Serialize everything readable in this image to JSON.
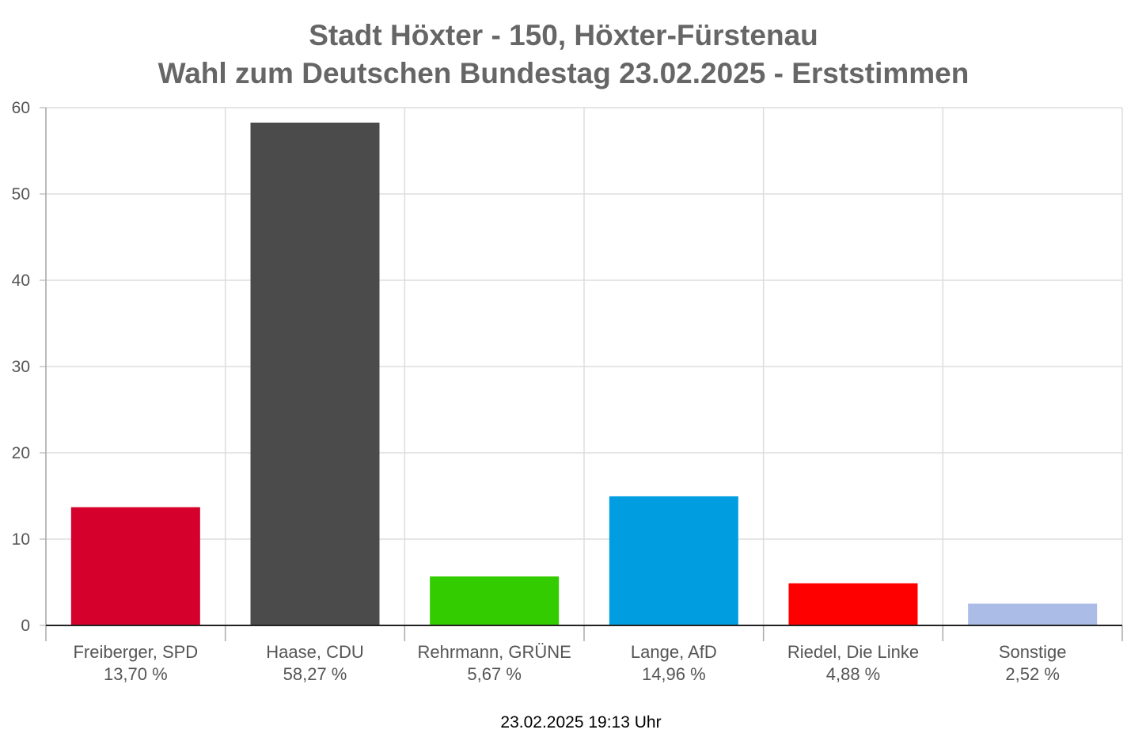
{
  "chart_data": {
    "type": "bar",
    "title": "Stadt Höxter - 150, Höxter-Fürstenau",
    "subtitle": "Wahl zum Deutschen Bundestag 23.02.2025  - Erststimmen",
    "categories": [
      "Freiberger, SPD",
      "Haase, CDU",
      "Rehrmann, GRÜNE",
      "Lange, AfD",
      "Riedel, Die Linke",
      "Sonstige"
    ],
    "values": [
      13.7,
      58.27,
      5.67,
      14.96,
      4.88,
      2.52
    ],
    "value_labels": [
      "13,70 %",
      "58,27 %",
      "5,67 %",
      "14,96 %",
      "4,88 %",
      "2,52 %"
    ],
    "colors": [
      "#d5002b",
      "#4b4b4b",
      "#33cc00",
      "#009ee0",
      "#ff0000",
      "#abbce6"
    ],
    "xlabel": "",
    "ylabel": "",
    "ylim": [
      0,
      60
    ],
    "yticks": [
      0,
      10,
      20,
      30,
      40,
      50,
      60
    ],
    "grid": true,
    "footer": "23.02.2025 19:13 Uhr"
  }
}
